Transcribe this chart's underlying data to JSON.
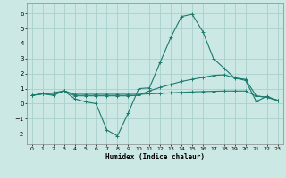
{
  "xlabel": "Humidex (Indice chaleur)",
  "background_color": "#cce8e4",
  "grid_color": "#aacfcc",
  "line_color": "#1a7a6e",
  "xlim": [
    -0.5,
    23.5
  ],
  "ylim": [
    -2.7,
    6.7
  ],
  "xticks": [
    0,
    1,
    2,
    3,
    4,
    5,
    6,
    7,
    8,
    9,
    10,
    11,
    12,
    13,
    14,
    15,
    16,
    17,
    18,
    19,
    20,
    21,
    22,
    23
  ],
  "yticks": [
    -2,
    -1,
    0,
    1,
    2,
    3,
    4,
    5,
    6
  ],
  "line1_x": [
    0,
    1,
    2,
    3,
    4,
    5,
    6,
    7,
    8,
    9,
    10,
    11,
    12,
    13,
    14,
    15,
    16,
    17,
    18,
    19,
    20,
    21,
    22,
    23
  ],
  "line1_y": [
    0.55,
    0.65,
    0.72,
    0.85,
    0.62,
    0.62,
    0.62,
    0.62,
    0.62,
    0.62,
    0.62,
    0.65,
    0.68,
    0.72,
    0.75,
    0.78,
    0.8,
    0.82,
    0.84,
    0.84,
    0.84,
    0.5,
    0.42,
    0.22
  ],
  "line2_x": [
    0,
    1,
    2,
    3,
    4,
    5,
    6,
    7,
    8,
    9,
    10,
    11,
    12,
    13,
    14,
    15,
    16,
    17,
    18,
    19,
    20,
    21,
    22,
    23
  ],
  "line2_y": [
    0.55,
    0.65,
    0.55,
    0.85,
    0.32,
    0.12,
    0.0,
    -1.75,
    -2.15,
    -0.65,
    1.0,
    1.05,
    2.75,
    4.4,
    5.8,
    5.95,
    4.8,
    3.0,
    2.35,
    1.7,
    1.55,
    0.15,
    0.48,
    0.22
  ],
  "line3_x": [
    0,
    1,
    2,
    3,
    4,
    5,
    6,
    7,
    8,
    9,
    10,
    11,
    12,
    13,
    14,
    15,
    16,
    17,
    18,
    19,
    20,
    21,
    22,
    23
  ],
  "line3_y": [
    0.55,
    0.65,
    0.62,
    0.85,
    0.52,
    0.52,
    0.52,
    0.52,
    0.52,
    0.52,
    0.55,
    0.85,
    1.08,
    1.28,
    1.48,
    1.62,
    1.75,
    1.88,
    1.92,
    1.72,
    1.62,
    0.52,
    0.42,
    0.22
  ]
}
